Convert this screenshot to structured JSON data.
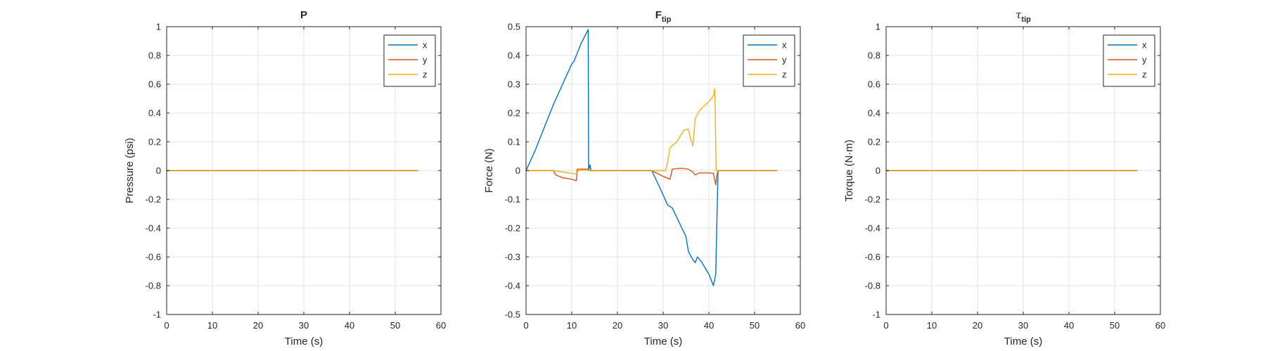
{
  "figure": {
    "background": "#ffffff"
  },
  "chart_data": [
    {
      "type": "line",
      "title": "P",
      "title_main": "P",
      "title_sub": "",
      "title_italic": false,
      "xlabel": "Time (s)",
      "ylabel": "Pressure (psi)",
      "xlim": [
        0,
        60
      ],
      "ylim": [
        -1,
        1
      ],
      "xticks": [
        0,
        10,
        20,
        30,
        40,
        50,
        60
      ],
      "xtick_labels": [
        "0",
        "10",
        "20",
        "30",
        "40",
        "50",
        "60"
      ],
      "yticks": [
        -1,
        -0.8,
        -0.6,
        -0.4,
        -0.2,
        0,
        0.2,
        0.4,
        0.6,
        0.8,
        1
      ],
      "ytick_labels": [
        "-1",
        "-0.8",
        "-0.6",
        "-0.4",
        "-0.2",
        "0",
        "0.2",
        "0.4",
        "0.6",
        "0.8",
        "1"
      ],
      "grid": true,
      "legend_position": "top-right",
      "series": [
        {
          "name": "x",
          "color": "#0072BD",
          "x": [
            0,
            55
          ],
          "y": [
            0,
            0
          ]
        },
        {
          "name": "y",
          "color": "#D95319",
          "x": [
            0,
            55
          ],
          "y": [
            0,
            0
          ]
        },
        {
          "name": "z",
          "color": "#EDB120",
          "x": [
            0,
            55
          ],
          "y": [
            0,
            0
          ]
        }
      ]
    },
    {
      "type": "line",
      "title": "F tip",
      "title_main": "F",
      "title_sub": "tip",
      "title_italic": false,
      "xlabel": "Time (s)",
      "ylabel": "Force (N)",
      "xlim": [
        0,
        60
      ],
      "ylim": [
        -0.5,
        0.5
      ],
      "xticks": [
        0,
        10,
        20,
        30,
        40,
        50,
        60
      ],
      "xtick_labels": [
        "0",
        "10",
        "20",
        "30",
        "40",
        "50",
        "60"
      ],
      "yticks": [
        -0.5,
        -0.4,
        -0.3,
        -0.2,
        -0.1,
        0,
        0.1,
        0.2,
        0.3,
        0.4,
        0.5
      ],
      "ytick_labels": [
        "-0.5",
        "-0.4",
        "-0.3",
        "-0.2",
        "-0.1",
        "0",
        "0.1",
        "0.2",
        "0.3",
        "0.4",
        "0.5"
      ],
      "grid": true,
      "legend_position": "top-right",
      "series": [
        {
          "name": "x",
          "color": "#0072BD",
          "x": [
            0,
            2,
            4,
            6,
            8,
            10,
            10.5,
            11,
            12,
            13.6,
            13.7,
            14,
            14.2,
            27.5,
            29,
            31,
            32,
            33.5,
            35,
            35.5,
            36.5,
            37,
            37.5,
            38.5,
            40,
            41,
            41.5,
            42,
            55
          ],
          "y": [
            0,
            0.07,
            0.15,
            0.23,
            0.3,
            0.37,
            0.38,
            0.4,
            0.44,
            0.49,
            0.0,
            0.02,
            0.0,
            0,
            -0.05,
            -0.12,
            -0.13,
            -0.18,
            -0.23,
            -0.28,
            -0.31,
            -0.32,
            -0.3,
            -0.32,
            -0.36,
            -0.4,
            -0.36,
            0,
            0
          ]
        },
        {
          "name": "y",
          "color": "#D95319",
          "x": [
            0,
            6,
            6.5,
            8,
            10,
            11,
            11.2,
            12,
            13.5,
            14,
            27.5,
            30,
            31.5,
            32,
            34,
            35.5,
            36.5,
            37,
            38,
            40,
            41,
            41.5,
            41.7,
            42,
            55
          ],
          "y": [
            0,
            0,
            -0.015,
            -0.025,
            -0.03,
            -0.035,
            0.005,
            0.005,
            0.005,
            0,
            0,
            -0.02,
            -0.03,
            0.005,
            0.008,
            0.005,
            -0.005,
            -0.015,
            -0.008,
            -0.008,
            -0.01,
            -0.05,
            -0.02,
            0,
            0
          ]
        },
        {
          "name": "z",
          "color": "#EDB120",
          "x": [
            0,
            6,
            8,
            10,
            11,
            11.5,
            12,
            13.5,
            14,
            27.5,
            30.5,
            31,
            31.5,
            33,
            34.5,
            35.5,
            36,
            36.5,
            37,
            38,
            40,
            41,
            41.3,
            41.6,
            42,
            55
          ],
          "y": [
            0,
            0,
            -0.005,
            -0.01,
            -0.012,
            0,
            0.002,
            0.002,
            0,
            0,
            0,
            0.03,
            0.08,
            0.1,
            0.14,
            0.145,
            0.11,
            0.085,
            0.18,
            0.21,
            0.24,
            0.26,
            0.285,
            0.0,
            0,
            0
          ]
        }
      ]
    },
    {
      "type": "line",
      "title": "τ tip",
      "title_main": "τ",
      "title_sub": "tip",
      "title_italic": true,
      "xlabel": "Time (s)",
      "ylabel": "Torque (N·m)",
      "xlim": [
        0,
        60
      ],
      "ylim": [
        -1,
        1
      ],
      "xticks": [
        0,
        10,
        20,
        30,
        40,
        50,
        60
      ],
      "xtick_labels": [
        "0",
        "10",
        "20",
        "30",
        "40",
        "50",
        "60"
      ],
      "yticks": [
        -1,
        -0.8,
        -0.6,
        -0.4,
        -0.2,
        0,
        0.2,
        0.4,
        0.6,
        0.8,
        1
      ],
      "ytick_labels": [
        "-1",
        "-0.8",
        "-0.6",
        "-0.4",
        "-0.2",
        "0",
        "0.2",
        "0.4",
        "0.6",
        "0.8",
        "1"
      ],
      "grid": true,
      "legend_position": "top-right",
      "series": [
        {
          "name": "x",
          "color": "#0072BD",
          "x": [
            0,
            55
          ],
          "y": [
            0,
            0
          ]
        },
        {
          "name": "y",
          "color": "#D95319",
          "x": [
            0,
            55
          ],
          "y": [
            0,
            0
          ]
        },
        {
          "name": "z",
          "color": "#EDB120",
          "x": [
            0,
            55
          ],
          "y": [
            0,
            0
          ]
        }
      ]
    }
  ]
}
